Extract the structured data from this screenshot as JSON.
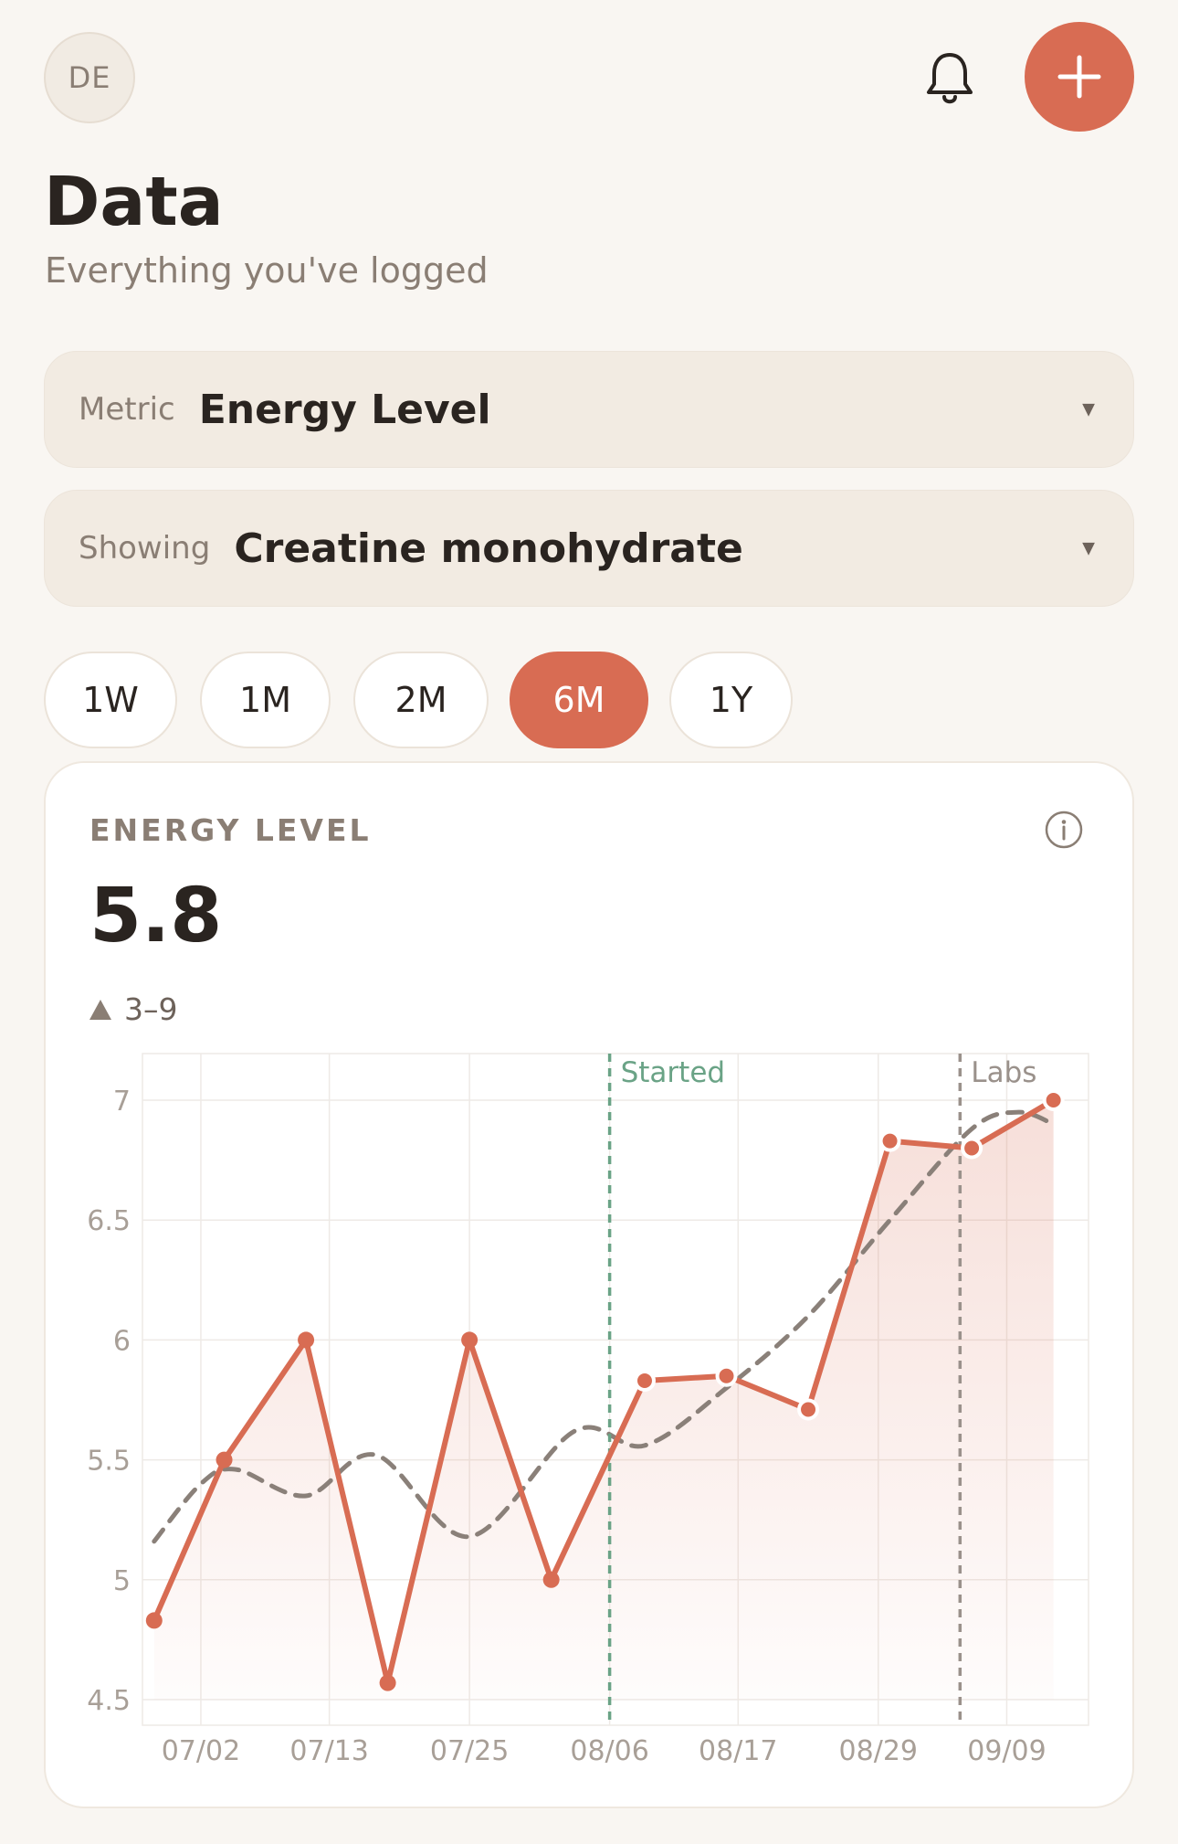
{
  "header": {
    "avatar_initials": "DE",
    "title": "Data",
    "subtitle": "Everything you've logged",
    "icons": {
      "notifications": "bell-icon",
      "add": "plus-icon"
    }
  },
  "filters": {
    "metric": {
      "label": "Metric",
      "value": "Energy Level"
    },
    "showing": {
      "label": "Showing",
      "value": "Creatine monohydrate"
    }
  },
  "ranges": [
    {
      "label": "1W",
      "active": false
    },
    {
      "label": "1M",
      "active": false
    },
    {
      "label": "2M",
      "active": false
    },
    {
      "label": "6M",
      "active": true
    },
    {
      "label": "1Y",
      "active": false
    }
  ],
  "card": {
    "title": "ENERGY LEVEL",
    "value": "5.8",
    "range": "3–9",
    "info_icon": "info-icon"
  },
  "colors": {
    "accent": "#d86c53",
    "trend": "#8a8079",
    "started_marker": "#6aa386",
    "labs_marker": "#9a918b"
  },
  "chart_data": {
    "type": "line",
    "ylim": [
      4.5,
      7
    ],
    "yticks": [
      4.5,
      5,
      5.5,
      6,
      6.5,
      7
    ],
    "xlim": [
      "06/27",
      "09/16"
    ],
    "xticks": [
      "07/02",
      "07/13",
      "07/25",
      "08/06",
      "08/17",
      "08/29",
      "09/09"
    ],
    "grid": true,
    "series": [
      {
        "points": [
          {
            "x": "06/28",
            "y": 4.83
          },
          {
            "x": "07/04",
            "y": 5.5
          },
          {
            "x": "07/11",
            "y": 6.0
          },
          {
            "x": "07/18",
            "y": 4.57
          },
          {
            "x": "07/25",
            "y": 6.0
          },
          {
            "x": "08/01",
            "y": 5.0
          },
          {
            "x": "08/09",
            "y": 5.83
          },
          {
            "x": "08/16",
            "y": 5.85
          },
          {
            "x": "08/23",
            "y": 5.71
          },
          {
            "x": "08/30",
            "y": 6.83
          },
          {
            "x": "09/06",
            "y": 6.8
          },
          {
            "x": "09/13",
            "y": 7.0
          }
        ]
      },
      {
        "style": "dashed",
        "points": [
          {
            "x": "06/28",
            "y": 5.16
          },
          {
            "x": "07/02",
            "y": 5.4
          },
          {
            "x": "07/05",
            "y": 5.46
          },
          {
            "x": "07/11",
            "y": 5.35
          },
          {
            "x": "07/17",
            "y": 5.52
          },
          {
            "x": "07/25",
            "y": 5.18
          },
          {
            "x": "08/03",
            "y": 5.62
          },
          {
            "x": "08/09",
            "y": 5.56
          },
          {
            "x": "08/16",
            "y": 5.8
          },
          {
            "x": "08/23",
            "y": 6.1
          },
          {
            "x": "08/30",
            "y": 6.5
          },
          {
            "x": "09/06",
            "y": 6.88
          },
          {
            "x": "09/10",
            "y": 6.95
          },
          {
            "x": "09/13",
            "y": 6.9
          }
        ]
      }
    ],
    "markers": [
      {
        "label": "Started",
        "x": "08/06"
      },
      {
        "label": "Labs",
        "x": "09/05"
      }
    ]
  }
}
